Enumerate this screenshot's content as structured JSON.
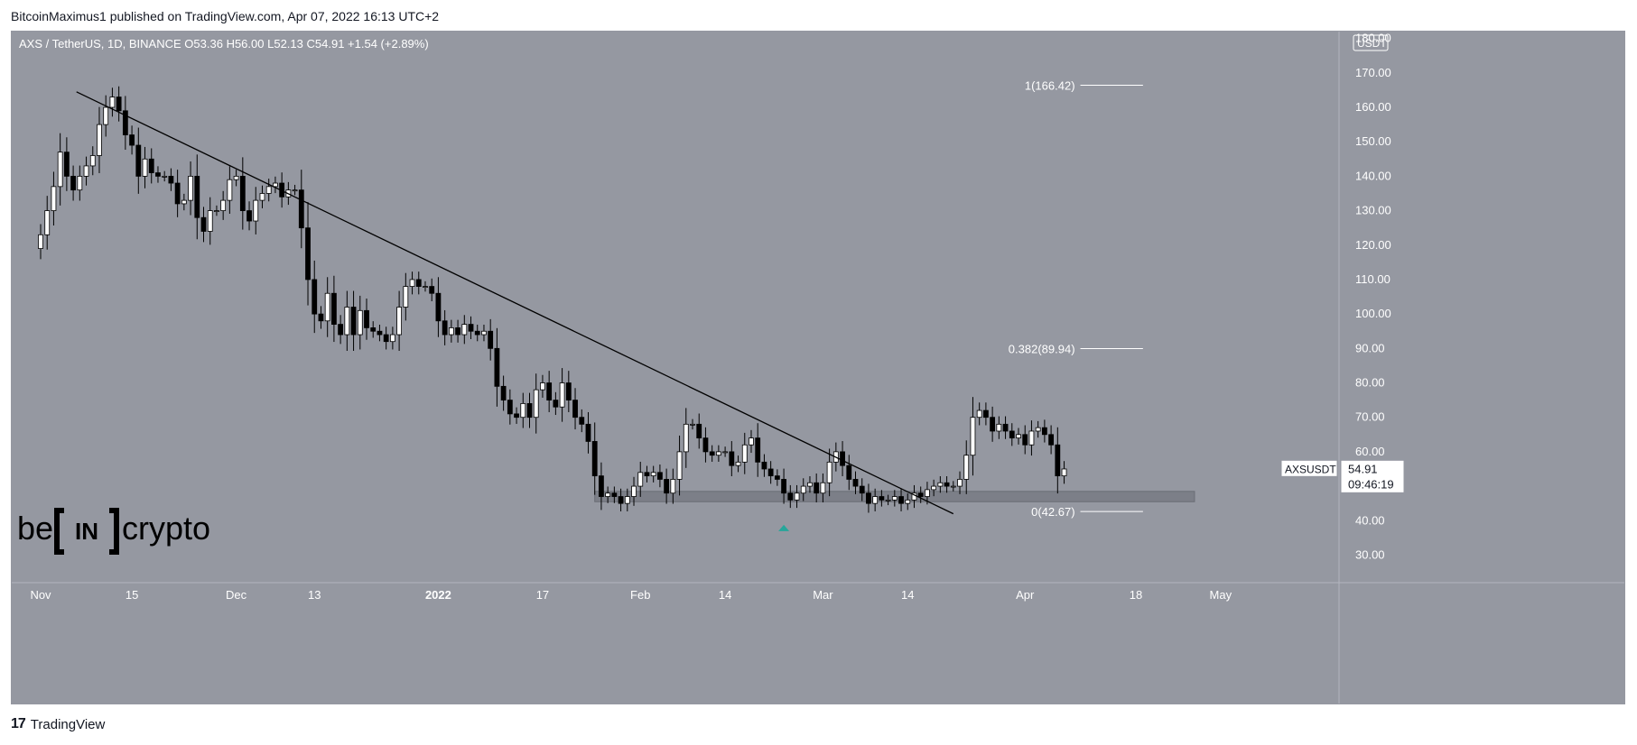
{
  "header": {
    "publish_line": "BitcoinMaximus1 published on TradingView.com, Apr 07, 2022 16:13 UTC+2"
  },
  "footer": {
    "brand": "TradingView",
    "logo_icon": "tradingview-logo-icon"
  },
  "watermark": {
    "text_left": "be",
    "text_center": "IN",
    "text_right": "crypto",
    "icon": "beincrypto-logo-icon"
  },
  "colors": {
    "plot_bg": "#9598a1",
    "grid": "#a3a6af",
    "bull_body": "#ffffff",
    "bear_body": "#000000",
    "wick": "#000000",
    "trendline": "#000000",
    "fib_line": "#ffffff",
    "support_zone": "#7c7f88",
    "arrow": "#26a69a"
  },
  "chart_data": {
    "type": "candlestick",
    "legend": {
      "symbol": "AXS / TetherUS, 1D, BINANCE",
      "o_label": "O",
      "o": "53.36",
      "h_label": "H",
      "h": "56.00",
      "l_label": "L",
      "l": "52.13",
      "c_label": "C",
      "c": "54.91",
      "change": "+1.54 (+2.89%)"
    },
    "y_axis": {
      "currency": "USDT",
      "ylim": [
        22,
        182
      ],
      "ticks": [
        "180.00",
        "170.00",
        "160.00",
        "150.00",
        "140.00",
        "130.00",
        "120.00",
        "110.00",
        "100.00",
        "90.00",
        "80.00",
        "70.00",
        "60.00",
        "50.00",
        "40.00",
        "30.00"
      ]
    },
    "x_axis": {
      "ticks": [
        {
          "label": "Nov",
          "day": 0
        },
        {
          "label": "15",
          "day": 14
        },
        {
          "label": "Dec",
          "day": 30
        },
        {
          "label": "13",
          "day": 42
        },
        {
          "label": "2022",
          "day": 61,
          "bold": true
        },
        {
          "label": "17",
          "day": 77
        },
        {
          "label": "Feb",
          "day": 92
        },
        {
          "label": "14",
          "day": 105
        },
        {
          "label": "Mar",
          "day": 120
        },
        {
          "label": "14",
          "day": 133
        },
        {
          "label": "Apr",
          "day": 151
        },
        {
          "label": "18",
          "day": 168
        },
        {
          "label": "May",
          "day": 181
        }
      ]
    },
    "price_label": {
      "symbol": "AXSUSDT",
      "value": "54.91",
      "countdown": "09:46:19"
    },
    "trendline": {
      "from": {
        "day": 5.5,
        "price": 164.5
      },
      "to": {
        "day": 140,
        "price": 42
      }
    },
    "support_zone": {
      "from_day": 85,
      "to_day": 177,
      "low": 45.5,
      "high": 48.5
    },
    "fib_levels": [
      {
        "label": "1(166.42)",
        "price": 166.42
      },
      {
        "label": "0.382(89.94)",
        "price": 89.94
      },
      {
        "label": "0(42.67)",
        "price": 42.67
      }
    ],
    "fib_x_range": {
      "from_day": 157,
      "to_day": 163
    },
    "arrow_marker": {
      "day": 114,
      "price": 38,
      "direction": "up"
    },
    "candles_closes": [
      123,
      130,
      137,
      147,
      140,
      136,
      140,
      143,
      146,
      155,
      160,
      163,
      159,
      152,
      149,
      140,
      145,
      141,
      140,
      140,
      138,
      132,
      133,
      140,
      128,
      124,
      130,
      130,
      133,
      139,
      140,
      130,
      127,
      133,
      135,
      137,
      138,
      134,
      136,
      136,
      125,
      110,
      100,
      98,
      106,
      97,
      94,
      102,
      94,
      101,
      96,
      95,
      94,
      92,
      94,
      102,
      108,
      110,
      108,
      108,
      106,
      98,
      94,
      96,
      94,
      97,
      95,
      94,
      95,
      90,
      79,
      75,
      71,
      70,
      74,
      70,
      78,
      80,
      75,
      73,
      80,
      75,
      70,
      68,
      63,
      53,
      47,
      48,
      47,
      45,
      47,
      50,
      54,
      53,
      54,
      52,
      48,
      52,
      60,
      68,
      68,
      64,
      60,
      59,
      60,
      60,
      56,
      57,
      62,
      64,
      57,
      55,
      53,
      52,
      48,
      46,
      48,
      50,
      51,
      48,
      51,
      57,
      60,
      56,
      52,
      50,
      48,
      45,
      47,
      46,
      46,
      47,
      45,
      46,
      48,
      47,
      49,
      50,
      51,
      50,
      50,
      52,
      59,
      70,
      72,
      70,
      66,
      68,
      66,
      64,
      65,
      62,
      66,
      67,
      65,
      62,
      53,
      55
    ],
    "ohlc_note": "daily candles from early Nov 2021 to Apr 07 2022; values estimated from axis"
  }
}
